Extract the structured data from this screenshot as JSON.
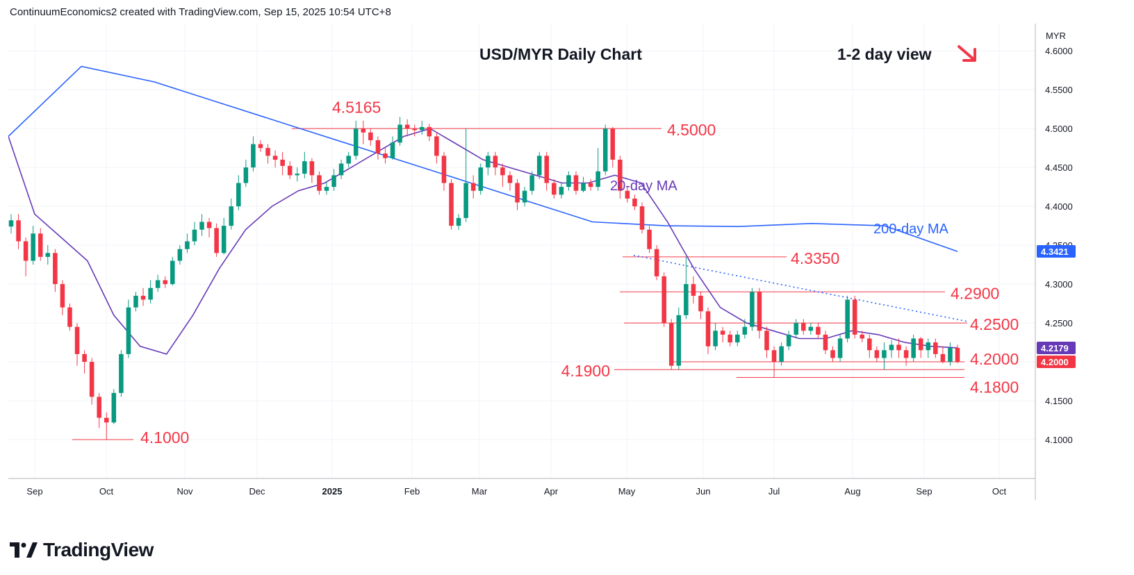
{
  "header": {
    "attribution": "ContinuumEconomics2 created with TradingView.com, Sep 15, 2025 10:54 UTC+8"
  },
  "brand": {
    "name": "TradingView"
  },
  "colors": {
    "up": "#089981",
    "down": "#f23645",
    "ma20": "#673ab7",
    "ma200": "#2962ff",
    "annotation": "#f23645",
    "trend": "#2962ff"
  },
  "chart_data": {
    "type": "candlestick",
    "title": "USD/MYR Daily Chart",
    "view_label": "1-2 day view",
    "view_arrow_icon": "down-right-arrow-icon",
    "currency": "MYR",
    "y_range": [
      4.05,
      4.635
    ],
    "y_ticks": [
      "4.6000",
      "4.5500",
      "4.5000",
      "4.4500",
      "4.4000",
      "4.3500",
      "4.3000",
      "4.2500",
      "4.2000",
      "4.1500",
      "4.1000"
    ],
    "x_ticks": [
      "Sep",
      "Oct",
      "Nov",
      "Dec",
      "2025",
      "Feb",
      "Mar",
      "Apr",
      "May",
      "Jun",
      "Jul",
      "Aug",
      "Sep",
      "Oct"
    ],
    "price_labels": [
      {
        "text": "4.2179",
        "value": 4.2179,
        "color": "#673ab7"
      },
      {
        "text": "4.3421",
        "value": 4.3421,
        "color": "#2962ff"
      },
      {
        "text": "4.2000",
        "value": 4.2,
        "color": "#f23645"
      }
    ],
    "levels": [
      {
        "text": "4.5165",
        "value": 4.5165,
        "line": false
      },
      {
        "text": "4.5000",
        "value": 4.5,
        "line": true
      },
      {
        "text": "4.3350",
        "value": 4.335,
        "line": true
      },
      {
        "text": "4.2900",
        "value": 4.29,
        "line": true
      },
      {
        "text": "4.2500",
        "value": 4.25,
        "line": true
      },
      {
        "text": "4.2000",
        "value": 4.2,
        "line": true
      },
      {
        "text": "4.1900",
        "value": 4.19,
        "line": true
      },
      {
        "text": "4.1800",
        "value": 4.18,
        "line": true
      },
      {
        "text": "4.1000",
        "value": 4.1,
        "line": true
      }
    ],
    "ma_labels": {
      "ma20": "20-day MA",
      "ma200": "200-day MA"
    },
    "ma200_points": [
      4.49,
      4.58,
      4.56,
      4.53,
      4.5,
      4.47,
      4.44,
      4.41,
      4.38,
      4.375,
      4.374,
      4.378,
      4.375,
      4.342
    ],
    "ma20_points": [
      4.49,
      4.39,
      4.36,
      4.33,
      4.26,
      4.22,
      4.21,
      4.26,
      4.32,
      4.37,
      4.4,
      4.42,
      4.43,
      4.45,
      4.47,
      4.49,
      4.5,
      4.48,
      4.46,
      4.45,
      4.44,
      4.43,
      4.43,
      4.44,
      4.43,
      4.38,
      4.32,
      4.27,
      4.25,
      4.24,
      4.23,
      4.23,
      4.24,
      4.235,
      4.225,
      4.22,
      4.218
    ],
    "candles": [
      [
        4.374,
        4.382,
        4.39,
        4.365
      ],
      [
        4.382,
        4.355,
        4.39,
        4.345
      ],
      [
        4.355,
        4.33,
        4.36,
        4.31
      ],
      [
        4.33,
        4.365,
        4.375,
        4.325
      ],
      [
        4.365,
        4.335,
        4.372,
        4.33
      ],
      [
        4.335,
        4.34,
        4.35,
        4.325
      ],
      [
        4.34,
        4.3,
        4.345,
        4.29
      ],
      [
        4.3,
        4.27,
        4.305,
        4.26
      ],
      [
        4.27,
        4.245,
        4.275,
        4.24
      ],
      [
        4.245,
        4.21,
        4.25,
        4.195
      ],
      [
        4.21,
        4.2,
        4.215,
        4.185
      ],
      [
        4.2,
        4.155,
        4.205,
        4.145
      ],
      [
        4.155,
        4.128,
        4.16,
        4.115
      ],
      [
        4.128,
        4.122,
        4.135,
        4.1
      ],
      [
        4.122,
        4.16,
        4.165,
        4.12
      ],
      [
        4.16,
        4.21,
        4.215,
        4.155
      ],
      [
        4.21,
        4.27,
        4.28,
        4.205
      ],
      [
        4.27,
        4.285,
        4.29,
        4.265
      ],
      [
        4.285,
        4.28,
        4.295,
        4.272
      ],
      [
        4.28,
        4.295,
        4.305,
        4.275
      ],
      [
        4.295,
        4.305,
        4.312,
        4.29
      ],
      [
        4.305,
        4.3,
        4.31,
        4.295
      ],
      [
        4.3,
        4.33,
        4.335,
        4.298
      ],
      [
        4.33,
        4.345,
        4.35,
        4.325
      ],
      [
        4.345,
        4.355,
        4.365,
        4.34
      ],
      [
        4.355,
        4.37,
        4.38,
        4.35
      ],
      [
        4.37,
        4.38,
        4.39,
        4.362
      ],
      [
        4.38,
        4.372,
        4.385,
        4.36
      ],
      [
        4.372,
        4.34,
        4.378,
        4.335
      ],
      [
        4.34,
        4.375,
        4.385,
        4.338
      ],
      [
        4.375,
        4.4,
        4.41,
        4.37
      ],
      [
        4.4,
        4.43,
        4.44,
        4.395
      ],
      [
        4.43,
        4.45,
        4.46,
        4.425
      ],
      [
        4.45,
        4.48,
        4.49,
        4.445
      ],
      [
        4.48,
        4.475,
        4.485,
        4.47
      ],
      [
        4.475,
        4.465,
        4.48,
        4.455
      ],
      [
        4.465,
        4.46,
        4.472,
        4.45
      ],
      [
        4.46,
        4.452,
        4.47,
        4.44
      ],
      [
        4.452,
        4.44,
        4.458,
        4.435
      ],
      [
        4.44,
        4.442,
        4.45,
        4.432
      ],
      [
        4.442,
        4.458,
        4.47,
        4.436
      ],
      [
        4.458,
        4.44,
        4.462,
        4.43
      ],
      [
        4.44,
        4.42,
        4.445,
        4.415
      ],
      [
        4.42,
        4.425,
        4.432,
        4.415
      ],
      [
        4.425,
        4.44,
        4.448,
        4.42
      ],
      [
        4.44,
        4.455,
        4.46,
        4.435
      ],
      [
        4.455,
        4.465,
        4.47,
        4.45
      ],
      [
        4.465,
        4.5,
        4.51,
        4.46
      ],
      [
        4.5,
        4.495,
        4.51,
        4.48
      ],
      [
        4.495,
        4.485,
        4.5,
        4.478
      ],
      [
        4.485,
        4.468,
        4.49,
        4.46
      ],
      [
        4.468,
        4.462,
        4.475,
        4.455
      ],
      [
        4.462,
        4.482,
        4.49,
        4.46
      ],
      [
        4.482,
        4.505,
        4.515,
        4.478
      ],
      [
        4.505,
        4.5,
        4.512,
        4.49
      ],
      [
        4.5,
        4.498,
        4.505,
        4.49
      ],
      [
        4.498,
        4.502,
        4.51,
        4.492
      ],
      [
        4.502,
        4.49,
        4.506,
        4.484
      ],
      [
        4.49,
        4.465,
        4.495,
        4.455
      ],
      [
        4.465,
        4.43,
        4.47,
        4.42
      ],
      [
        4.43,
        4.375,
        4.435,
        4.37
      ],
      [
        4.375,
        4.385,
        4.39,
        4.37
      ],
      [
        4.385,
        4.43,
        4.5,
        4.38
      ],
      [
        4.43,
        4.42,
        4.44,
        4.41
      ],
      [
        4.42,
        4.45,
        4.455,
        4.415
      ],
      [
        4.45,
        4.465,
        4.47,
        4.44
      ],
      [
        4.465,
        4.45,
        4.47,
        4.44
      ],
      [
        4.45,
        4.44,
        4.455,
        4.425
      ],
      [
        4.44,
        4.43,
        4.445,
        4.42
      ],
      [
        4.43,
        4.405,
        4.435,
        4.395
      ],
      [
        4.405,
        4.42,
        4.425,
        4.4
      ],
      [
        4.42,
        4.44,
        4.445,
        4.415
      ],
      [
        4.44,
        4.465,
        4.47,
        4.435
      ],
      [
        4.465,
        4.43,
        4.47,
        4.42
      ],
      [
        4.43,
        4.415,
        4.435,
        4.41
      ],
      [
        4.415,
        4.425,
        4.43,
        4.41
      ],
      [
        4.425,
        4.44,
        4.445,
        4.42
      ],
      [
        4.44,
        4.42,
        4.445,
        4.415
      ],
      [
        4.42,
        4.43,
        4.438,
        4.418
      ],
      [
        4.43,
        4.425,
        4.435,
        4.42
      ],
      [
        4.425,
        4.445,
        4.475,
        4.42
      ],
      [
        4.445,
        4.5,
        4.505,
        4.44
      ],
      [
        4.5,
        4.46,
        4.502,
        4.45
      ],
      [
        4.46,
        4.42,
        4.465,
        4.41
      ],
      [
        4.42,
        4.41,
        4.425,
        4.405
      ],
      [
        4.41,
        4.4,
        4.415,
        4.395
      ],
      [
        4.4,
        4.37,
        4.405,
        4.365
      ],
      [
        4.37,
        4.345,
        4.375,
        4.34
      ],
      [
        4.345,
        4.31,
        4.35,
        4.305
      ],
      [
        4.31,
        4.25,
        4.315,
        4.245
      ],
      [
        4.25,
        4.195,
        4.255,
        4.19
      ],
      [
        4.195,
        4.26,
        4.27,
        4.19
      ],
      [
        4.26,
        4.3,
        4.335,
        4.255
      ],
      [
        4.3,
        4.285,
        4.31,
        4.275
      ],
      [
        4.285,
        4.265,
        4.29,
        4.255
      ],
      [
        4.265,
        4.22,
        4.27,
        4.21
      ],
      [
        4.22,
        4.24,
        4.25,
        4.215
      ],
      [
        4.24,
        4.235,
        4.245,
        4.225
      ],
      [
        4.235,
        4.225,
        4.24,
        4.22
      ],
      [
        4.225,
        4.235,
        4.24,
        4.22
      ],
      [
        4.235,
        4.245,
        4.255,
        4.23
      ],
      [
        4.245,
        4.29,
        4.295,
        4.24
      ],
      [
        4.29,
        4.24,
        4.295,
        4.23
      ],
      [
        4.24,
        4.215,
        4.245,
        4.205
      ],
      [
        4.215,
        4.2,
        4.22,
        4.18
      ],
      [
        4.2,
        4.22,
        4.225,
        4.195
      ],
      [
        4.22,
        4.235,
        4.24,
        4.215
      ],
      [
        4.235,
        4.25,
        4.255,
        4.23
      ],
      [
        4.25,
        4.24,
        4.255,
        4.235
      ],
      [
        4.24,
        4.245,
        4.25,
        4.235
      ],
      [
        4.245,
        4.235,
        4.25,
        4.23
      ],
      [
        4.235,
        4.215,
        4.24,
        4.21
      ],
      [
        4.215,
        4.205,
        4.22,
        4.2
      ],
      [
        4.205,
        4.23,
        4.235,
        4.2
      ],
      [
        4.23,
        4.28,
        4.285,
        4.225
      ],
      [
        4.28,
        4.235,
        4.285,
        4.23
      ],
      [
        4.235,
        4.23,
        4.24,
        4.225
      ],
      [
        4.23,
        4.215,
        4.235,
        4.205
      ],
      [
        4.215,
        4.205,
        4.22,
        4.2
      ],
      [
        4.205,
        4.215,
        4.225,
        4.19
      ],
      [
        4.215,
        4.222,
        4.228,
        4.205
      ],
      [
        4.222,
        4.215,
        4.23,
        4.205
      ],
      [
        4.215,
        4.205,
        4.22,
        4.195
      ],
      [
        4.205,
        4.23,
        4.235,
        4.2
      ],
      [
        4.23,
        4.215,
        4.232,
        4.205
      ],
      [
        4.215,
        4.225,
        4.23,
        4.205
      ],
      [
        4.225,
        4.21,
        4.23,
        4.205
      ],
      [
        4.21,
        4.2,
        4.22,
        4.198
      ],
      [
        4.2,
        4.218,
        4.225,
        4.195
      ],
      [
        4.218,
        4.2,
        4.222,
        4.198
      ]
    ]
  }
}
